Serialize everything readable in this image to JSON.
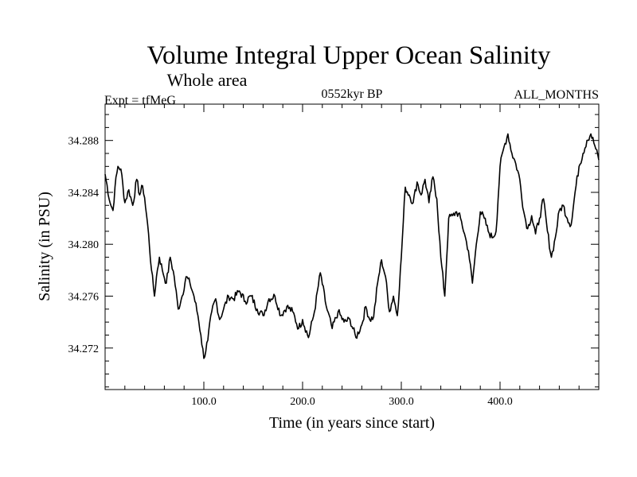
{
  "chart_data": {
    "type": "line",
    "title": "Volume Integral Upper Ocean Salinity",
    "subtitle": "Whole area",
    "left_label": "Expt = tfMeG",
    "center_label": "0552kyr BP",
    "right_label": "ALL_MONTHS",
    "xlabel": "Time (in years since start)",
    "ylabel": "Salinity (in PSU)",
    "xlim": [
      0,
      500
    ],
    "ylim": [
      34.2688,
      34.2908
    ],
    "x_ticks": [
      100,
      200,
      300,
      400
    ],
    "x_tick_labels": [
      "100.0",
      "200.0",
      "300.0",
      "400.0"
    ],
    "y_ticks": [
      34.272,
      34.276,
      34.28,
      34.284,
      34.288
    ],
    "y_tick_labels": [
      "34.272",
      "34.276",
      "34.280",
      "34.284",
      "34.288"
    ],
    "series": [
      {
        "name": "salinity",
        "x": [
          0,
          5,
          8,
          10,
          13,
          16,
          20,
          24,
          28,
          32,
          35,
          38,
          40,
          44,
          47,
          50,
          52,
          55,
          58,
          62,
          66,
          70,
          74,
          78,
          82,
          86,
          90,
          94,
          97,
          100,
          104,
          108,
          112,
          116,
          120,
          125,
          130,
          136,
          142,
          148,
          154,
          160,
          166,
          172,
          178,
          184,
          190,
          196,
          200,
          206,
          212,
          218,
          224,
          230,
          236,
          242,
          248,
          254,
          260,
          264,
          268,
          272,
          276,
          280,
          284,
          288,
          292,
          296,
          300,
          304,
          308,
          312,
          316,
          320,
          324,
          328,
          332,
          336,
          340,
          344,
          348,
          352,
          356,
          360,
          364,
          368,
          372,
          376,
          380,
          384,
          388,
          392,
          396,
          400,
          404,
          408,
          412,
          416,
          420,
          424,
          428,
          432,
          436,
          440,
          444,
          448,
          452,
          456,
          460,
          464,
          468,
          472,
          476,
          480,
          484,
          488,
          492,
          496,
          500
        ],
        "values": [
          34.2854,
          34.2832,
          34.2826,
          34.2844,
          34.286,
          34.2858,
          34.2832,
          34.2842,
          34.283,
          34.285,
          34.2838,
          34.2845,
          34.2836,
          34.2808,
          34.278,
          34.276,
          34.2775,
          34.279,
          34.278,
          34.277,
          34.279,
          34.2775,
          34.275,
          34.276,
          34.2775,
          34.277,
          34.276,
          34.2745,
          34.273,
          34.2712,
          34.2726,
          34.2748,
          34.2758,
          34.2742,
          34.275,
          34.276,
          34.2758,
          34.2764,
          34.2756,
          34.276,
          34.275,
          34.2745,
          34.2758,
          34.276,
          34.2745,
          34.2752,
          34.2748,
          34.2735,
          34.2742,
          34.2728,
          34.2748,
          34.2778,
          34.2752,
          34.2735,
          34.2748,
          34.274,
          34.2742,
          34.2728,
          34.2738,
          34.2752,
          34.2742,
          34.2744,
          34.277,
          34.2788,
          34.2775,
          34.2748,
          34.276,
          34.2745,
          34.279,
          34.2844,
          34.2838,
          34.2832,
          34.2848,
          34.2838,
          34.285,
          34.2832,
          34.2852,
          34.2835,
          34.279,
          34.276,
          34.282,
          34.2822,
          34.2825,
          34.282,
          34.2808,
          34.2795,
          34.277,
          34.28,
          34.2825,
          34.282,
          34.281,
          34.2805,
          34.281,
          34.286,
          34.2875,
          34.2885,
          34.287,
          34.2862,
          34.285,
          34.2825,
          34.2812,
          34.2822,
          34.2808,
          34.282,
          34.2835,
          34.281,
          34.279,
          34.2805,
          34.2826,
          34.283,
          34.282,
          34.2815,
          34.284,
          34.286,
          34.287,
          34.288,
          34.2885,
          34.2876,
          34.2865
        ]
      }
    ]
  }
}
